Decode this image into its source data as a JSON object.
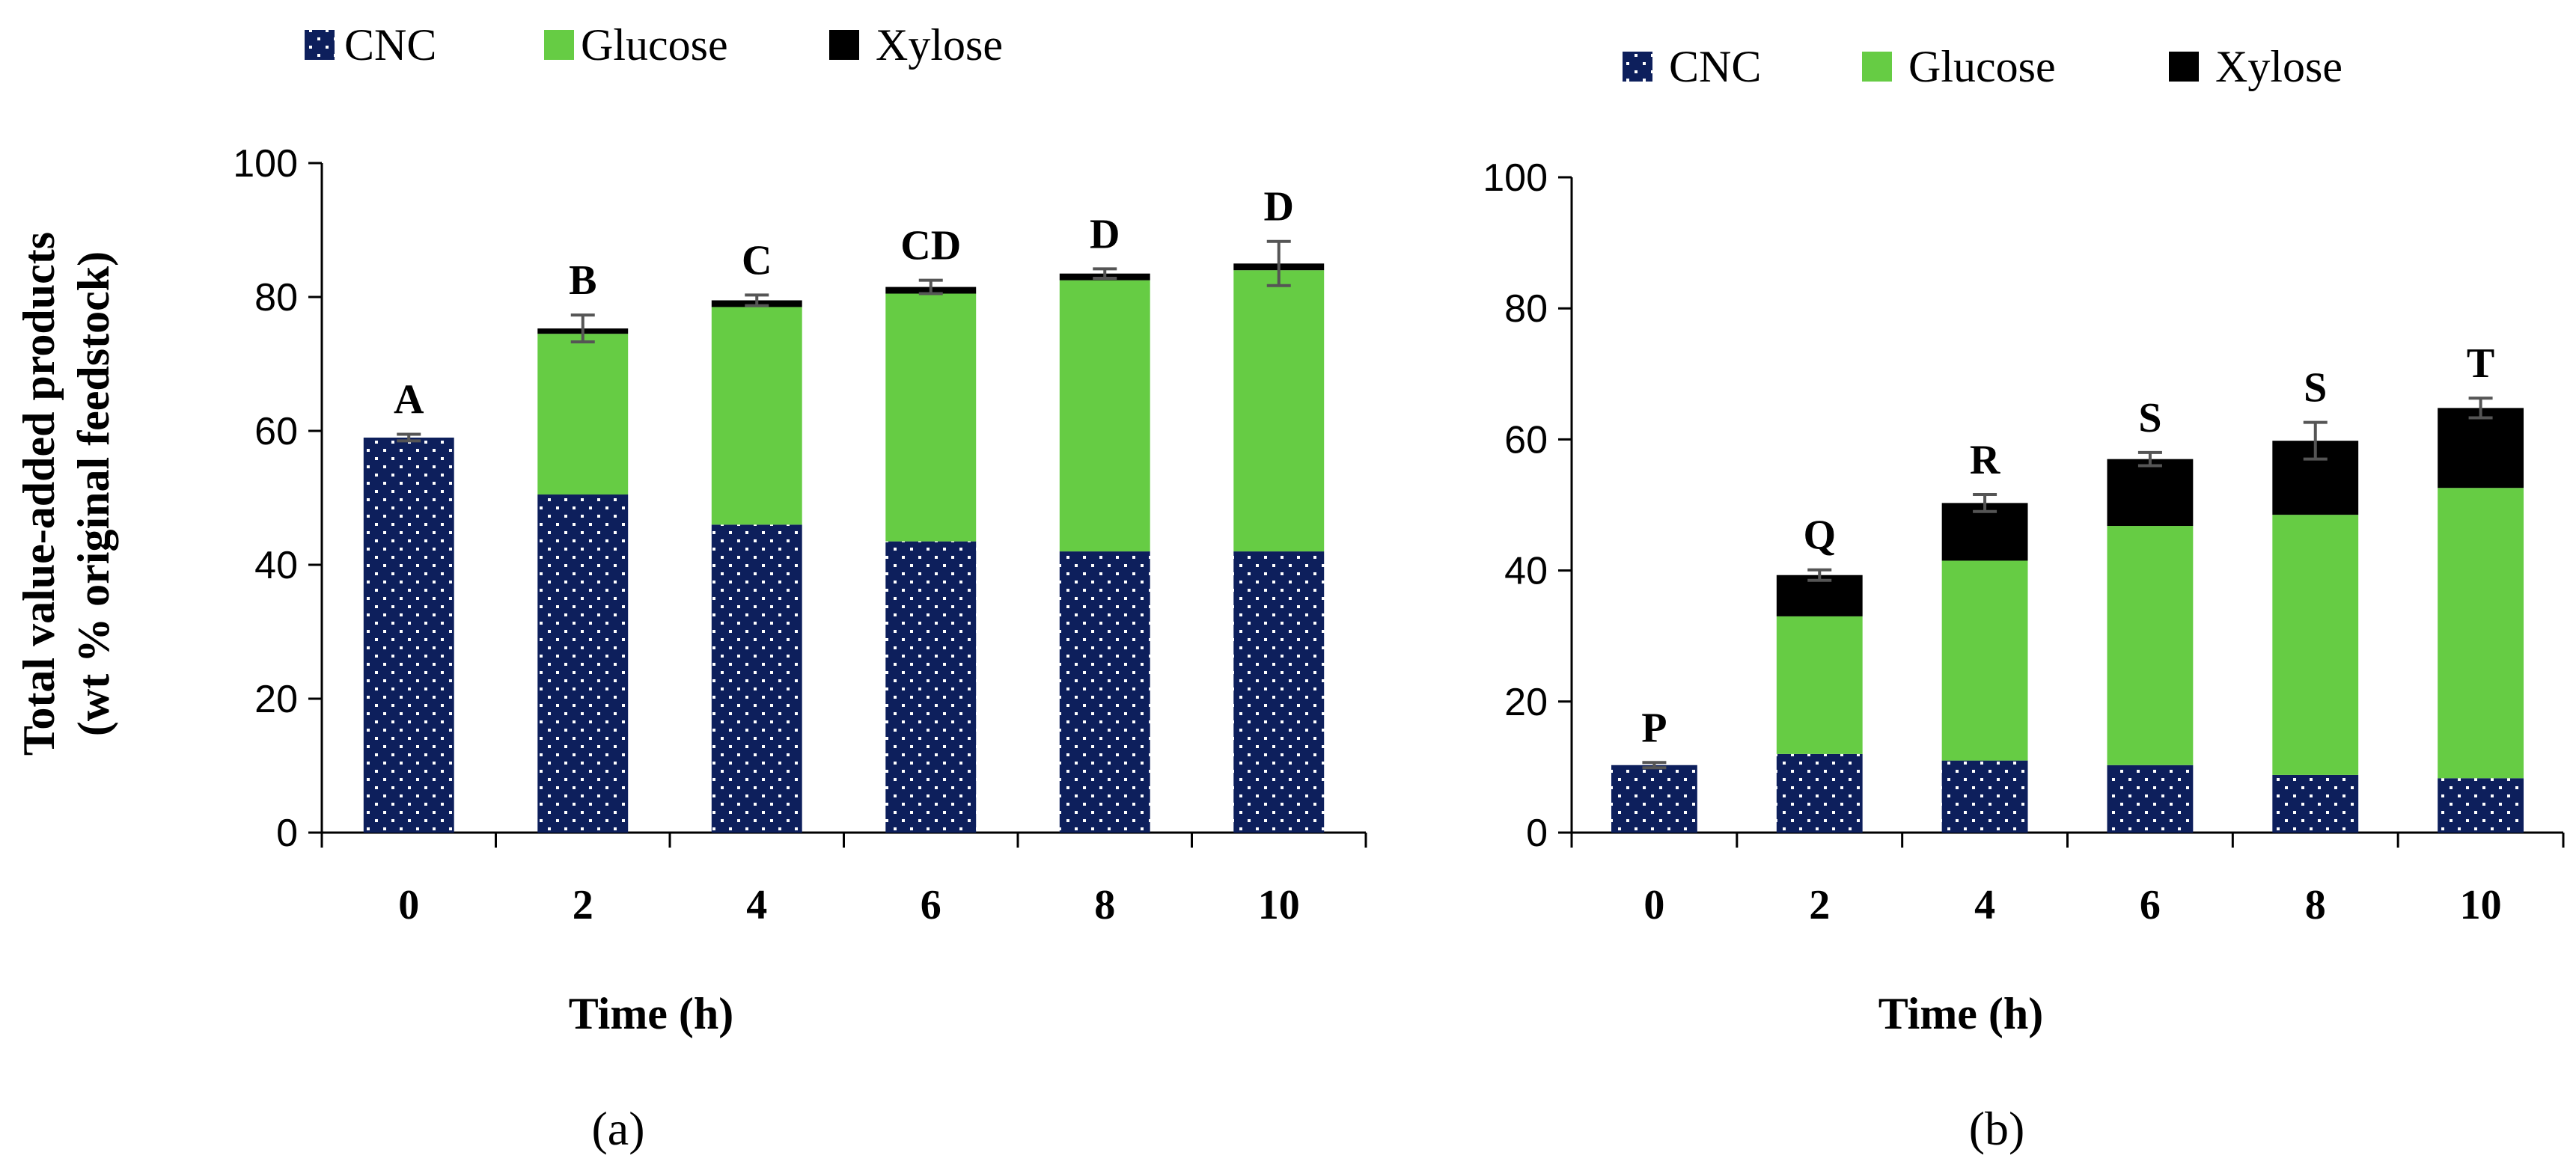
{
  "chart_data": [
    {
      "type": "bar",
      "stacked": true,
      "panel_label": "(a)",
      "categories": [
        "0",
        "2",
        "4",
        "6",
        "8",
        "10"
      ],
      "series": [
        {
          "name": "CNC",
          "values": [
            59,
            50.5,
            46,
            43.5,
            42,
            42
          ]
        },
        {
          "name": "Glucose",
          "values": [
            0,
            24,
            32.5,
            37,
            40.5,
            42
          ]
        },
        {
          "name": "Xylose",
          "values": [
            0,
            0.8,
            1,
            1,
            1,
            1
          ]
        }
      ],
      "error": [
        0.5,
        2,
        0.8,
        1,
        0.7,
        3.3
      ],
      "significance": [
        "A",
        "B",
        "C",
        "CD",
        "D",
        "D"
      ],
      "xlabel": "Time (h)",
      "ylabel": [
        "Total value-added products",
        "(wt % original feedstock)"
      ],
      "ylim": [
        0,
        100
      ],
      "yticks": [
        "0",
        "20",
        "40",
        "60",
        "80",
        "100"
      ],
      "legend": "top"
    },
    {
      "type": "bar",
      "stacked": true,
      "panel_label": "(b)",
      "categories": [
        "0",
        "2",
        "4",
        "6",
        "8",
        "10"
      ],
      "series": [
        {
          "name": "CNC",
          "values": [
            10.3,
            12,
            11,
            10.3,
            8.8,
            8.3
          ]
        },
        {
          "name": "Glucose",
          "values": [
            0,
            21,
            30.5,
            36.5,
            39.7,
            44.3
          ]
        },
        {
          "name": "Xylose",
          "values": [
            0,
            6.3,
            8.8,
            10.2,
            11.3,
            12.2
          ]
        }
      ],
      "error": [
        0.4,
        0.8,
        1.3,
        1,
        2.8,
        1.5
      ],
      "significance": [
        "P",
        "Q",
        "R",
        "S",
        "S",
        "T"
      ],
      "xlabel": "Time (h)",
      "ylabel": [],
      "ylim": [
        0,
        100
      ],
      "yticks": [
        "0",
        "20",
        "40",
        "60",
        "80",
        "100"
      ],
      "legend": "top"
    }
  ],
  "legend": {
    "items": [
      "CNC",
      "Glucose",
      "Xylose"
    ]
  },
  "colors": {
    "CNC": "#0d1f5c",
    "Glucose": "#66cc44",
    "Xylose": "#000000",
    "error_bar": "#555555",
    "axis": "#000000"
  }
}
